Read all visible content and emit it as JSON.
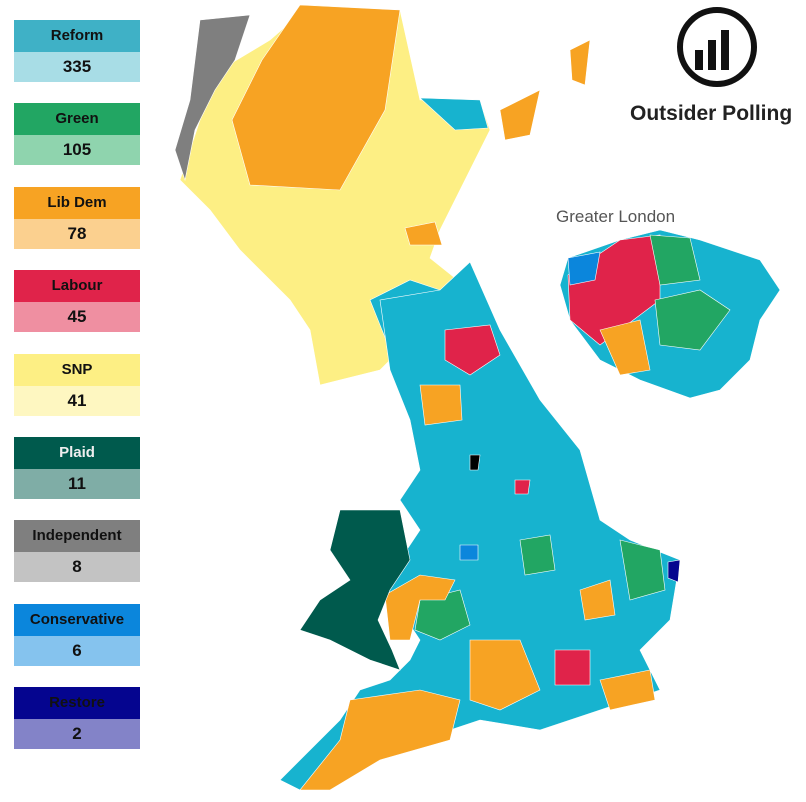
{
  "legend": {
    "items": [
      {
        "party": "Reform",
        "seats": 335,
        "color": "#3fb1c6",
        "light": "#a8dde6"
      },
      {
        "party": "Green",
        "seats": 105,
        "color": "#22a663",
        "light": "#8fd4ae"
      },
      {
        "party": "Lib Dem",
        "seats": 78,
        "color": "#f7a323",
        "light": "#fbd08f"
      },
      {
        "party": "Labour",
        "seats": 45,
        "color": "#e0234a",
        "light": "#ef8fa1"
      },
      {
        "party": "SNP",
        "seats": 41,
        "color": "#fdef84",
        "light": "#fef7c1"
      },
      {
        "party": "Plaid",
        "seats": 11,
        "color": "#005a4d",
        "light": "#7fada6"
      },
      {
        "party": "Independent",
        "seats": 8,
        "color": "#7f7f7f",
        "light": "#c3c3c3"
      },
      {
        "party": "Conservative",
        "seats": 6,
        "color": "#0b86dc",
        "light": "#85c3ee"
      },
      {
        "party": "Restore",
        "seats": 2,
        "color": "#05058f",
        "light": "#8383c8"
      }
    ]
  },
  "logo": {
    "name": "Outsider Polling"
  },
  "inset": {
    "label": "Greater London"
  }
}
